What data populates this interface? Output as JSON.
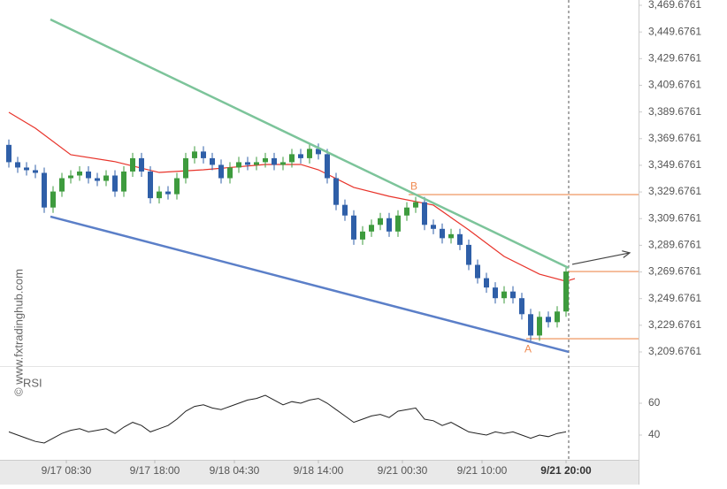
{
  "chart_data": {
    "type": "candlestick",
    "watermark": "© www.fxtradinghub.com",
    "up_color": "#3e9b3e",
    "down_color": "#2f5fa8",
    "xlim": [
      -1,
      71.2
    ],
    "xticks": [
      {
        "value": 6.5,
        "label": "9/17 08:30"
      },
      {
        "value": 16.5,
        "label": "9/17 18:00"
      },
      {
        "value": 25.5,
        "label": "9/18 04:30"
      },
      {
        "value": 35,
        "label": "9/18 14:00"
      },
      {
        "value": 44.5,
        "label": "9/21 00:30"
      },
      {
        "value": 53.5,
        "label": "9/21 10:00"
      },
      {
        "value": 63,
        "label": "9/21 20:00"
      }
    ],
    "ylim": [
      3209.6761,
      3469.6761
    ],
    "yticks": [
      {
        "value": 3209.6761,
        "label": "3,209.6761"
      },
      {
        "value": 3229.6761,
        "label": "3,229.6761"
      },
      {
        "value": 3249.6761,
        "label": "3,249.6761"
      },
      {
        "value": 3269.6761,
        "label": "3,269.6761"
      },
      {
        "value": 3289.6761,
        "label": "3,289.6761"
      },
      {
        "value": 3309.6761,
        "label": "3,309.6761"
      },
      {
        "value": 3329.6761,
        "label": "3,329.6761"
      },
      {
        "value": 3349.6761,
        "label": "3,349.6761"
      },
      {
        "value": 3369.6761,
        "label": "3,369.6761"
      },
      {
        "value": 3389.6761,
        "label": "3,389.6761"
      },
      {
        "value": 3409.6761,
        "label": "3,409.6761"
      },
      {
        "value": 3429.6761,
        "label": "3,429.6761"
      },
      {
        "value": 3449.6761,
        "label": "3,449.6761"
      },
      {
        "value": 3469.6761,
        "label": "3,469.6761"
      }
    ],
    "candles": {
      "x": [
        0,
        1,
        2,
        3,
        4,
        5,
        6,
        7,
        8,
        9,
        10,
        11,
        12,
        13,
        14,
        15,
        16,
        17,
        18,
        19,
        20,
        21,
        22,
        23,
        24,
        25,
        26,
        27,
        28,
        29,
        30,
        31,
        32,
        33,
        34,
        35,
        36,
        37,
        38,
        39,
        40,
        41,
        42,
        43,
        44,
        45,
        46,
        47,
        48,
        49,
        50,
        51,
        52,
        53,
        54,
        55,
        56,
        57,
        58,
        59,
        60,
        61,
        62,
        63
      ],
      "open": [
        3365,
        3352,
        3348,
        3346,
        3344,
        3318,
        3330,
        3340,
        3342,
        3345,
        3340,
        3338,
        3342,
        3330,
        3345,
        3355,
        3345,
        3325,
        3330,
        3328,
        3340,
        3355,
        3360,
        3355,
        3350,
        3340,
        3348,
        3352,
        3350,
        3352,
        3355,
        3350,
        3352,
        3358,
        3355,
        3362,
        3358,
        3340,
        3320,
        3312,
        3294,
        3300,
        3305,
        3310,
        3300,
        3312,
        3318,
        3322,
        3305,
        3302,
        3295,
        3298,
        3290,
        3275,
        3265,
        3258,
        3250,
        3255,
        3250,
        3238,
        3222,
        3236,
        3232,
        3240
      ],
      "high": [
        3369,
        3356,
        3352,
        3350,
        3348,
        3334,
        3344,
        3346,
        3349,
        3349,
        3344,
        3346,
        3346,
        3349,
        3359,
        3359,
        3349,
        3334,
        3334,
        3344,
        3359,
        3364,
        3364,
        3359,
        3354,
        3352,
        3356,
        3356,
        3356,
        3359,
        3359,
        3356,
        3362,
        3362,
        3366,
        3366,
        3362,
        3344,
        3324,
        3316,
        3304,
        3309,
        3314,
        3314,
        3316,
        3322,
        3326,
        3326,
        3309,
        3306,
        3302,
        3302,
        3294,
        3279,
        3269,
        3262,
        3259,
        3259,
        3254,
        3242,
        3240,
        3240,
        3244,
        3274
      ],
      "low": [
        3348,
        3344,
        3342,
        3340,
        3314,
        3314,
        3326,
        3336,
        3338,
        3336,
        3334,
        3334,
        3326,
        3326,
        3341,
        3341,
        3321,
        3321,
        3324,
        3324,
        3336,
        3351,
        3351,
        3346,
        3336,
        3336,
        3344,
        3346,
        3346,
        3348,
        3346,
        3346,
        3348,
        3351,
        3351,
        3354,
        3336,
        3316,
        3308,
        3290,
        3290,
        3296,
        3301,
        3296,
        3296,
        3308,
        3314,
        3301,
        3298,
        3291,
        3291,
        3286,
        3271,
        3261,
        3254,
        3246,
        3246,
        3246,
        3234,
        3218,
        3218,
        3228,
        3228,
        3236
      ],
      "close": [
        3352,
        3348,
        3346,
        3344,
        3318,
        3330,
        3340,
        3342,
        3345,
        3340,
        3338,
        3342,
        3330,
        3345,
        3355,
        3345,
        3325,
        3330,
        3328,
        3340,
        3355,
        3360,
        3355,
        3350,
        3340,
        3348,
        3352,
        3350,
        3352,
        3355,
        3350,
        3352,
        3358,
        3355,
        3362,
        3358,
        3340,
        3320,
        3312,
        3294,
        3300,
        3305,
        3310,
        3300,
        3312,
        3318,
        3322,
        3305,
        3302,
        3295,
        3298,
        3290,
        3275,
        3265,
        3258,
        3250,
        3255,
        3250,
        3238,
        3222,
        3236,
        3232,
        3240,
        3270
      ]
    },
    "moving_average": {
      "color": "#e8332a",
      "x": [
        0,
        3,
        7,
        12,
        17,
        22,
        29,
        33,
        35,
        39,
        43,
        48,
        52,
        56,
        60,
        63,
        64
      ],
      "values": [
        3389.4,
        3377.5,
        3357.6,
        3352.4,
        3344.3,
        3346.3,
        3350.3,
        3350.3,
        3346.3,
        3333.1,
        3326.4,
        3319.8,
        3301.2,
        3281.3,
        3268.0,
        3262.7,
        3264.7
      ]
    },
    "trendlines": [
      {
        "color": "#7cc49a",
        "x": [
          4.7,
          63.3
        ],
        "values": [
          3459.1,
          3272.7
        ]
      },
      {
        "color": "#5b7fc8",
        "x": [
          4.7,
          63.3
        ],
        "values": [
          3311.2,
          3209.7
        ]
      }
    ],
    "levels": [
      {
        "color": "#f0a070",
        "x": [
          45.2,
          71.2
        ],
        "value": 3327.7
      },
      {
        "color": "#f0a070",
        "x": [
          63.3,
          71.2
        ],
        "value": 3270.0
      },
      {
        "color": "#f0a070",
        "x": [
          58.5,
          71.2
        ],
        "value": 3219.6
      }
    ],
    "arrow": {
      "color": "#444444",
      "x": [
        63.7,
        70.2
      ],
      "values": [
        3275.4,
        3284.0
      ]
    },
    "annotations": [
      {
        "text": "B",
        "x": 45.8,
        "value": 3333.5
      },
      {
        "text": "A",
        "x": 58.7,
        "value": 3211.5
      }
    ],
    "current_x": 63.3,
    "rsi": {
      "label": "RSI",
      "color": "#222222",
      "ylim": [
        25,
        75
      ],
      "yticks": [
        40,
        60
      ],
      "values": [
        42,
        40,
        38,
        36,
        35,
        38,
        41,
        43,
        44,
        42,
        43,
        44,
        41,
        45,
        48,
        46,
        42,
        44,
        46,
        50,
        55,
        58,
        59,
        57,
        56,
        58,
        60,
        62,
        63,
        65,
        62,
        59,
        61,
        60,
        62,
        63,
        60,
        56,
        52,
        48,
        50,
        52,
        53,
        51,
        55,
        56,
        57,
        50,
        49,
        46,
        48,
        45,
        42,
        41,
        40,
        42,
        41,
        42,
        40,
        38,
        40,
        39,
        41,
        42
      ]
    }
  }
}
